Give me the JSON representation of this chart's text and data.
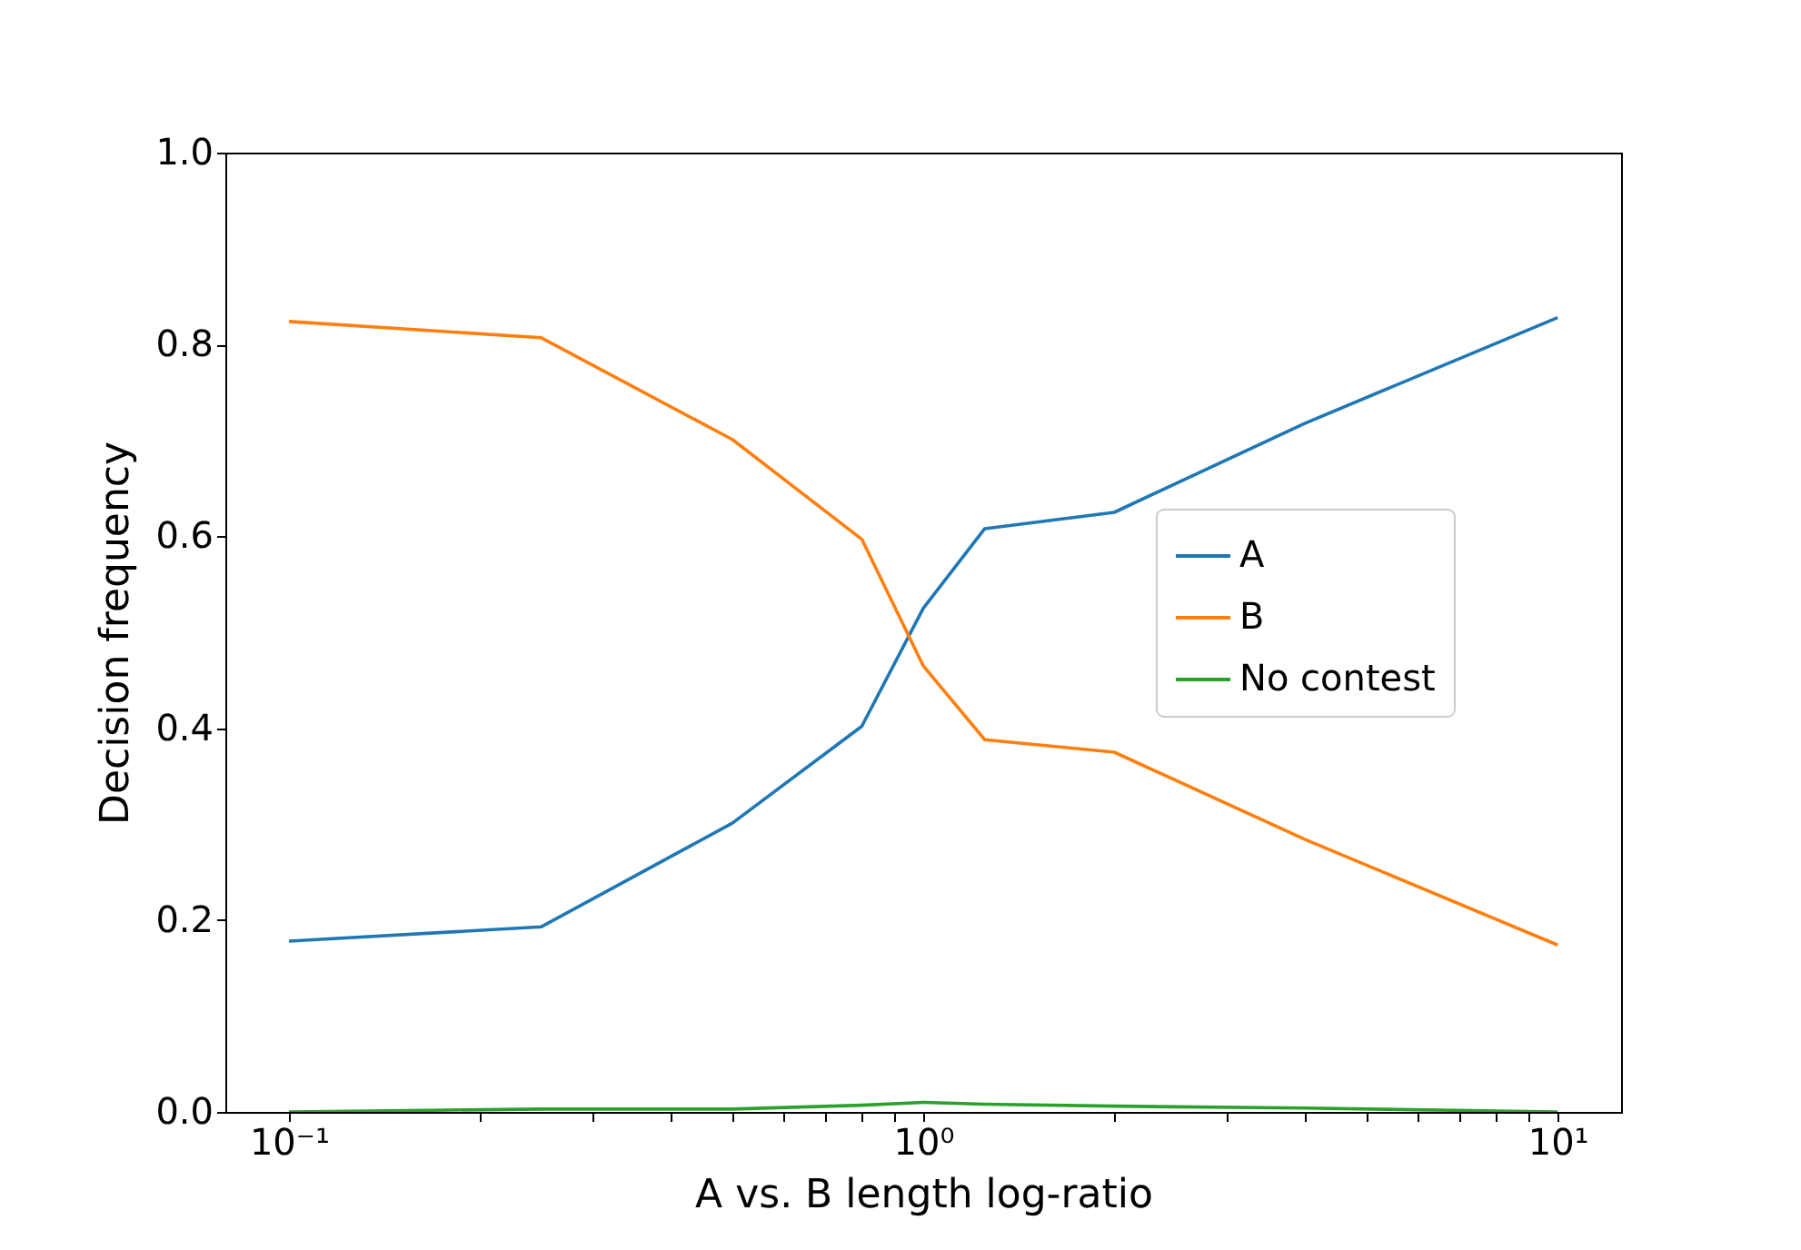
{
  "chart_data": {
    "type": "line",
    "xlabel": "A vs. B length log-ratio",
    "ylabel": "Decision frequency",
    "x": [
      0.1,
      0.25,
      0.5,
      0.8,
      1,
      1.25,
      2,
      4,
      10
    ],
    "series": [
      {
        "name": "A",
        "color": "#1f77b4",
        "values": [
          0.178,
          0.193,
          0.301,
          0.402,
          0.525,
          0.608,
          0.625,
          0.718,
          0.828
        ]
      },
      {
        "name": "B",
        "color": "#ff7f0e",
        "values": [
          0.824,
          0.807,
          0.701,
          0.597,
          0.465,
          0.388,
          0.375,
          0.284,
          0.174
        ]
      },
      {
        "name": "No contest",
        "color": "#2ca02c",
        "values": [
          0.0,
          0.003,
          0.003,
          0.007,
          0.01,
          0.008,
          0.006,
          0.004,
          0.0
        ]
      }
    ],
    "log": "x",
    "xlim": [
      0.0794,
      12.59
    ],
    "xticks": [
      {
        "value": 0.1,
        "label": "10⁻¹"
      },
      {
        "value": 0.2,
        "label": null
      },
      {
        "value": 0.3,
        "label": null
      },
      {
        "value": 0.4,
        "label": null
      },
      {
        "value": 0.5,
        "label": null
      },
      {
        "value": 0.6,
        "label": null
      },
      {
        "value": 0.7,
        "label": null
      },
      {
        "value": 0.8,
        "label": null
      },
      {
        "value": 0.9,
        "label": null
      },
      {
        "value": 1,
        "label": "10⁰"
      },
      {
        "value": 2,
        "label": null
      },
      {
        "value": 3,
        "label": null
      },
      {
        "value": 4,
        "label": null
      },
      {
        "value": 5,
        "label": null
      },
      {
        "value": 6,
        "label": null
      },
      {
        "value": 7,
        "label": null
      },
      {
        "value": 8,
        "label": null
      },
      {
        "value": 9,
        "label": null
      },
      {
        "value": 10,
        "label": "10¹"
      }
    ],
    "ylim": [
      0,
      1
    ],
    "yticks": [
      {
        "value": 0,
        "label": "0.0"
      },
      0.2,
      0.4,
      0.6,
      0.8,
      {
        "value": 1,
        "label": "1.0"
      }
    ],
    "grid": false,
    "legend": "center right",
    "marker": "none",
    "line_style": "solid"
  }
}
